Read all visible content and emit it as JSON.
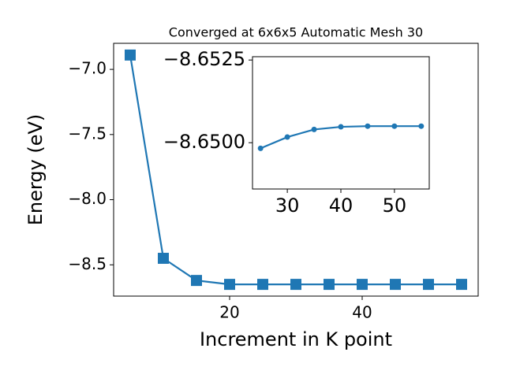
{
  "chart_data": [
    {
      "type": "line",
      "title": "Converged at 6x6x5 Automatic Mesh 30",
      "x_label": "Increment in K point",
      "y_label": "Energy (eV)",
      "x": [
        5,
        10,
        15,
        20,
        25,
        30,
        35,
        40,
        45,
        50,
        55
      ],
      "values": [
        -6.89,
        -8.45,
        -8.62,
        -8.65,
        -8.65,
        -8.65,
        -8.65,
        -8.65,
        -8.65,
        -8.65,
        -8.65
      ],
      "color": "#1f77b4",
      "marker": "square",
      "xlim": [
        2.5,
        57.5
      ],
      "xticks": [
        20,
        40
      ],
      "ylim": [
        -8.74,
        -6.8
      ],
      "yticks": [
        {
          "value": -7.0,
          "label": "−7.0"
        },
        {
          "value": -7.5,
          "label": "−7.5"
        },
        {
          "value": -8.0,
          "label": "−8.0"
        },
        {
          "value": -8.5,
          "label": "−8.5"
        }
      ]
    },
    {
      "type": "line",
      "x": [
        25,
        30,
        35,
        40,
        45,
        50,
        55
      ],
      "values": [
        -8.64983,
        -8.65017,
        -8.6504,
        -8.65048,
        -8.6505,
        -8.6505,
        -8.6505
      ],
      "color": "#1f77b4",
      "marker": "circle",
      "xlim": [
        23.5,
        56.5
      ],
      "xticks": [
        30,
        40,
        50
      ],
      "ylim": [
        -8.6486,
        -8.6526
      ],
      "yticks": [
        {
          "value": -8.6525,
          "label": "−8.6525"
        },
        {
          "value": -8.65,
          "label": "−8.6500"
        }
      ]
    }
  ]
}
